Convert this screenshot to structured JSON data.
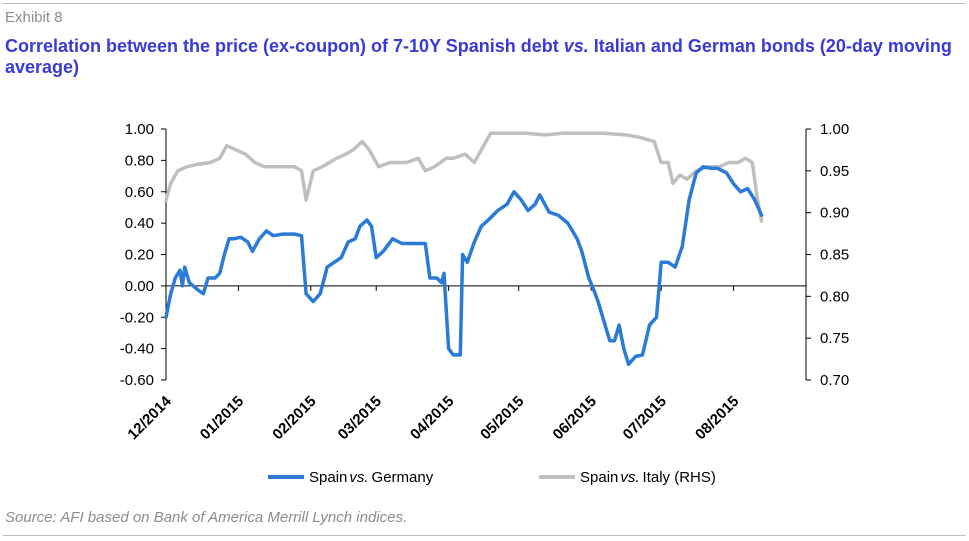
{
  "header": {
    "exhibit": "Exhibit 8",
    "title_part1": "Correlation between the price (ex-coupon) of 7-10Y Spanish debt ",
    "title_vs": "vs.",
    "title_part2": " Italian and German bonds (20-day moving average)"
  },
  "footer": {
    "source": "Source: AFI based on Bank of America Merrill Lynch indices."
  },
  "colors": {
    "spain_vs_germany": "#2a7ad8",
    "spain_vs_italy": "#bcc1bc",
    "title": "#3a3ad6",
    "grey_text": "#8c8c8c"
  },
  "chart_data": {
    "type": "line",
    "x_tick_labels": [
      "12/2014",
      "01/2015",
      "02/2015",
      "03/2015",
      "04/2015",
      "05/2015",
      "06/2015",
      "07/2015",
      "08/2015"
    ],
    "y_left": {
      "ticks": [
        "1.00",
        "0.80",
        "0.60",
        "0.40",
        "0.20",
        "0.00",
        "-0.20",
        "-0.40",
        "-0.60"
      ],
      "ylim": [
        -0.6,
        1.0
      ]
    },
    "y_right": {
      "ticks": [
        "1.00",
        "0.95",
        "0.90",
        "0.85",
        "0.80",
        "0.75",
        "0.70"
      ],
      "ylim": [
        0.7,
        1.0
      ]
    },
    "grid": false,
    "legend_position": "bottom",
    "series": [
      {
        "name_prefix": "Spain",
        "name_vs": "vs.",
        "name_suffix": "Germany",
        "axis": "left",
        "points": [
          [
            "12/01/2014",
            -0.2
          ],
          [
            "12/03/2014",
            -0.05
          ],
          [
            "12/05/2014",
            0.05
          ],
          [
            "12/07/2014",
            0.1
          ],
          [
            "12/08/2014",
            0.0
          ],
          [
            "12/09/2014",
            0.12
          ],
          [
            "12/11/2014",
            0.02
          ],
          [
            "12/15/2014",
            -0.03
          ],
          [
            "12/17/2014",
            -0.05
          ],
          [
            "12/19/2014",
            0.05
          ],
          [
            "12/22/2014",
            0.05
          ],
          [
            "12/24/2014",
            0.08
          ],
          [
            "12/26/2014",
            0.2
          ],
          [
            "12/28/2014",
            0.3
          ],
          [
            "12/30/2014",
            0.3
          ],
          [
            "01/02/2015",
            0.31
          ],
          [
            "01/05/2015",
            0.28
          ],
          [
            "01/07/2015",
            0.22
          ],
          [
            "01/10/2015",
            0.3
          ],
          [
            "01/13/2015",
            0.35
          ],
          [
            "01/16/2015",
            0.32
          ],
          [
            "01/20/2015",
            0.33
          ],
          [
            "01/25/2015",
            0.33
          ],
          [
            "01/28/2015",
            0.32
          ],
          [
            "01/30/2015",
            -0.05
          ],
          [
            "02/02/2015",
            -0.1
          ],
          [
            "02/05/2015",
            -0.05
          ],
          [
            "02/08/2015",
            0.12
          ],
          [
            "02/11/2015",
            0.15
          ],
          [
            "02/14/2015",
            0.18
          ],
          [
            "02/17/2015",
            0.28
          ],
          [
            "02/20/2015",
            0.3
          ],
          [
            "02/22/2015",
            0.38
          ],
          [
            "02/25/2015",
            0.42
          ],
          [
            "02/27/2015",
            0.38
          ],
          [
            "03/01/2015",
            0.18
          ],
          [
            "03/04/2015",
            0.22
          ],
          [
            "03/08/2015",
            0.3
          ],
          [
            "03/12/2015",
            0.27
          ],
          [
            "03/18/2015",
            0.27
          ],
          [
            "03/22/2015",
            0.27
          ],
          [
            "03/24/2015",
            0.05
          ],
          [
            "03/27/2015",
            0.05
          ],
          [
            "03/29/2015",
            0.02
          ],
          [
            "03/30/2015",
            0.08
          ],
          [
            "04/01/2015",
            -0.4
          ],
          [
            "04/03/2015",
            -0.44
          ],
          [
            "04/06/2015",
            -0.44
          ],
          [
            "04/07/2015",
            0.2
          ],
          [
            "04/09/2015",
            0.15
          ],
          [
            "04/12/2015",
            0.28
          ],
          [
            "04/15/2015",
            0.38
          ],
          [
            "04/18/2015",
            0.42
          ],
          [
            "04/22/2015",
            0.48
          ],
          [
            "04/26/2015",
            0.52
          ],
          [
            "04/29/2015",
            0.6
          ],
          [
            "05/02/2015",
            0.55
          ],
          [
            "05/05/2015",
            0.48
          ],
          [
            "05/08/2015",
            0.52
          ],
          [
            "05/10/2015",
            0.58
          ],
          [
            "05/14/2015",
            0.47
          ],
          [
            "05/18/2015",
            0.45
          ],
          [
            "05/22/2015",
            0.4
          ],
          [
            "05/26/2015",
            0.3
          ],
          [
            "05/28/2015",
            0.22
          ],
          [
            "05/31/2015",
            0.05
          ],
          [
            "06/02/2015",
            -0.02
          ],
          [
            "06/04/2015",
            -0.1
          ],
          [
            "06/07/2015",
            -0.25
          ],
          [
            "06/09/2015",
            -0.35
          ],
          [
            "06/11/2015",
            -0.35
          ],
          [
            "06/13/2015",
            -0.25
          ],
          [
            "06/15/2015",
            -0.4
          ],
          [
            "06/17/2015",
            -0.5
          ],
          [
            "06/20/2015",
            -0.45
          ],
          [
            "06/23/2015",
            -0.44
          ],
          [
            "06/26/2015",
            -0.25
          ],
          [
            "06/29/2015",
            -0.2
          ],
          [
            "07/01/2015",
            0.15
          ],
          [
            "07/04/2015",
            0.15
          ],
          [
            "07/07/2015",
            0.12
          ],
          [
            "07/10/2015",
            0.25
          ],
          [
            "07/13/2015",
            0.55
          ],
          [
            "07/16/2015",
            0.72
          ],
          [
            "07/19/2015",
            0.76
          ],
          [
            "07/22/2015",
            0.75
          ],
          [
            "07/25/2015",
            0.75
          ],
          [
            "07/29/2015",
            0.72
          ],
          [
            "08/01/2015",
            0.65
          ],
          [
            "08/04/2015",
            0.6
          ],
          [
            "08/07/2015",
            0.62
          ],
          [
            "08/10/2015",
            0.55
          ],
          [
            "08/13/2015",
            0.45
          ]
        ]
      },
      {
        "name_prefix": "Spain",
        "name_vs": "vs.",
        "name_suffix": "Italy (RHS)",
        "axis": "right",
        "points": [
          [
            "12/01/2014",
            0.915
          ],
          [
            "12/03/2014",
            0.935
          ],
          [
            "12/06/2014",
            0.95
          ],
          [
            "12/10/2014",
            0.955
          ],
          [
            "12/15/2014",
            0.958
          ],
          [
            "12/20/2014",
            0.96
          ],
          [
            "12/24/2014",
            0.965
          ],
          [
            "12/27/2014",
            0.98
          ],
          [
            "12/31/2014",
            0.975
          ],
          [
            "01/04/2015",
            0.97
          ],
          [
            "01/08/2015",
            0.96
          ],
          [
            "01/12/2015",
            0.955
          ],
          [
            "01/18/2015",
            0.955
          ],
          [
            "01/25/2015",
            0.955
          ],
          [
            "01/28/2015",
            0.95
          ],
          [
            "01/30/2015",
            0.915
          ],
          [
            "02/02/2015",
            0.95
          ],
          [
            "02/06/2015",
            0.955
          ],
          [
            "02/12/2015",
            0.965
          ],
          [
            "02/16/2015",
            0.97
          ],
          [
            "02/19/2015",
            0.975
          ],
          [
            "02/23/2015",
            0.985
          ],
          [
            "02/26/2015",
            0.975
          ],
          [
            "03/02/2015",
            0.955
          ],
          [
            "03/07/2015",
            0.96
          ],
          [
            "03/14/2015",
            0.96
          ],
          [
            "03/19/2015",
            0.965
          ],
          [
            "03/22/2015",
            0.95
          ],
          [
            "03/26/2015",
            0.955
          ],
          [
            "03/31/2015",
            0.965
          ],
          [
            "04/03/2015",
            0.965
          ],
          [
            "04/08/2015",
            0.97
          ],
          [
            "04/12/2015",
            0.96
          ],
          [
            "04/15/2015",
            0.975
          ],
          [
            "04/19/2015",
            0.995
          ],
          [
            "04/25/2015",
            0.995
          ],
          [
            "05/04/2015",
            0.995
          ],
          [
            "05/12/2015",
            0.993
          ],
          [
            "05/20/2015",
            0.995
          ],
          [
            "05/28/2015",
            0.995
          ],
          [
            "06/06/2015",
            0.995
          ],
          [
            "06/16/2015",
            0.993
          ],
          [
            "06/22/2015",
            0.99
          ],
          [
            "06/28/2015",
            0.985
          ],
          [
            "07/01/2015",
            0.96
          ],
          [
            "07/04/2015",
            0.96
          ],
          [
            "07/06/2015",
            0.935
          ],
          [
            "07/09/2015",
            0.945
          ],
          [
            "07/12/2015",
            0.94
          ],
          [
            "07/16/2015",
            0.95
          ],
          [
            "07/21/2015",
            0.955
          ],
          [
            "07/26/2015",
            0.955
          ],
          [
            "07/30/2015",
            0.96
          ],
          [
            "08/03/2015",
            0.96
          ],
          [
            "08/06/2015",
            0.965
          ],
          [
            "08/09/2015",
            0.96
          ],
          [
            "08/11/2015",
            0.92
          ],
          [
            "08/13/2015",
            0.89
          ]
        ]
      }
    ]
  }
}
